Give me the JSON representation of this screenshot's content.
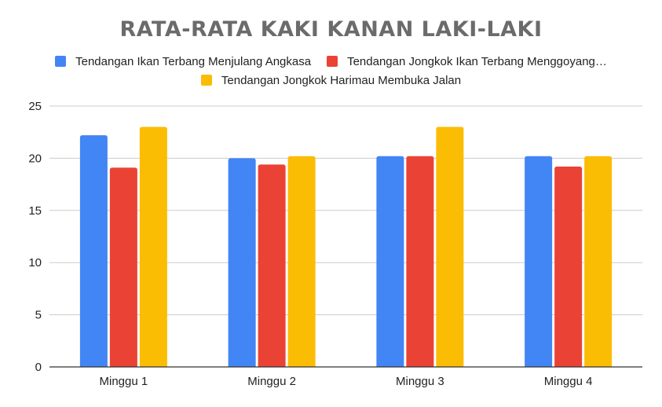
{
  "chart_data": {
    "type": "bar",
    "title": "RATA-RATA KAKI KANAN LAKI-LAKI",
    "categories": [
      "Minggu 1",
      "Minggu 2",
      "Minggu 3",
      "Minggu 4"
    ],
    "series": [
      {
        "name": "Tendangan Ikan Terbang Menjulang Angkasa",
        "color": "#4285f4",
        "values": [
          22.2,
          20.0,
          20.2,
          20.2
        ]
      },
      {
        "name": "Tendangan Jongkok Ikan Terbang Menggoyang…",
        "color": "#ea4335",
        "values": [
          19.1,
          19.4,
          20.2,
          19.2
        ]
      },
      {
        "name": "Tendangan Jongkok Harimau Membuka Jalan",
        "color": "#fbbc04",
        "values": [
          23.0,
          20.2,
          23.0,
          20.2
        ]
      }
    ],
    "yticks": [
      0,
      5,
      10,
      15,
      20,
      25
    ],
    "ylim": [
      0,
      25
    ],
    "xlabel": "",
    "ylabel": "",
    "grid": true,
    "legend_position": "top"
  }
}
